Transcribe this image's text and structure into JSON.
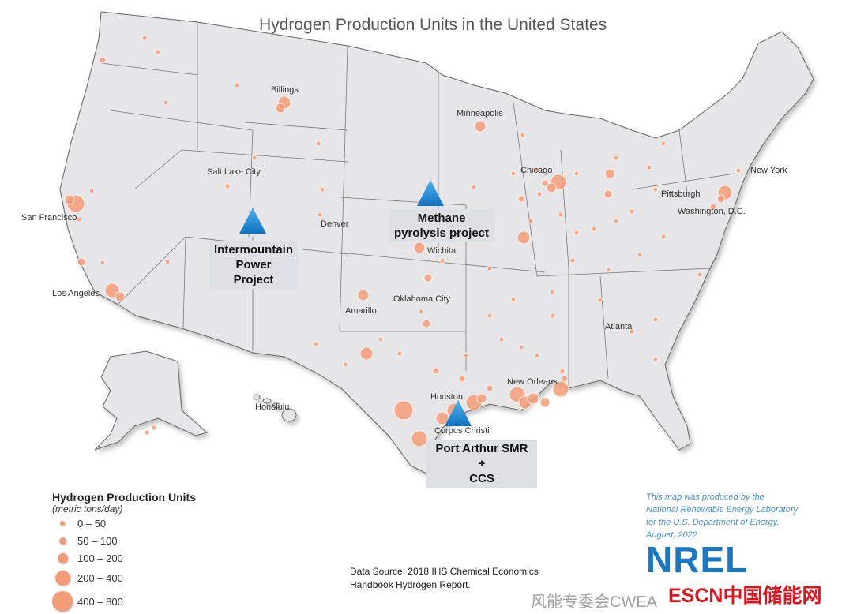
{
  "title": "Hydrogen Production Units in the United States",
  "cities": {
    "billings": "Billings",
    "minneapolis": "Minneapolis",
    "salt_lake_city": "Salt Lake City",
    "chicago": "Chicago",
    "new_york": "New York",
    "pittsburgh": "Pittsburgh",
    "washington_dc": "Washington, D.C.",
    "san_francisco": "San Francisco",
    "denver": "Denver",
    "wichita": "Wichita",
    "los_angeles": "Los Angeles",
    "amarillo": "Amarillo",
    "oklahoma_city": "Oklahoma City",
    "atlanta": "Atlanta",
    "new_orleans": "New Orleans",
    "houston": "Houston",
    "honolulu": "Honolulu",
    "corpus_christi": "Corpus Christi"
  },
  "projects": [
    {
      "label_line1": "Intermountain",
      "label_line2": "Power Project"
    },
    {
      "label_line1": "Methane",
      "label_line2": "pyrolysis project"
    },
    {
      "label_line1": "Port Arthur SMR +",
      "label_line2": "CCS"
    }
  ],
  "legend": {
    "title": "Hydrogen Production Units",
    "subtitle": "(metric tons/day)",
    "items": [
      "0 – 50",
      "50 – 100",
      "100 – 200",
      "200 – 400",
      "400 – 800"
    ]
  },
  "source": {
    "line1": "Data Source: 2018 IHS Chemical Economics",
    "line2": "Handbook Hydrogen Report."
  },
  "credit": {
    "line1": "This map was produced by the",
    "line2": "National Renewable Energy Laboratory",
    "line3": "for the U.S. Department of Energy.",
    "line4": "August, 2022"
  },
  "logos": {
    "nrel": "NREL",
    "watermark1": "风能专委会CWEA",
    "watermark2": "ESCN中国储能网"
  },
  "colors": {
    "land": "#e6e6e8",
    "border": "#666666",
    "dot": "#f39c78",
    "triangle": "#1f8fd6",
    "callout": "#dde1e6"
  }
}
